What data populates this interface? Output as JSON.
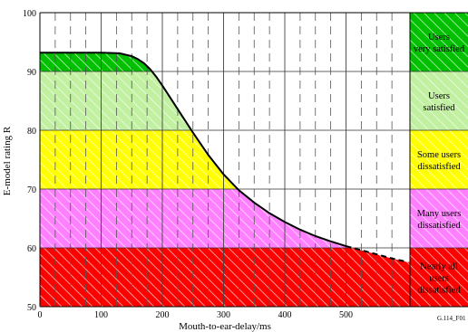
{
  "chart_data": {
    "type": "area",
    "xlabel": "Mouth-to-ear-delay/ms",
    "ylabel": "E-model rating R",
    "figure_id": "G.114_F01",
    "xlim": [
      0,
      600
    ],
    "ylim": [
      50,
      100
    ],
    "x_ticks": [
      0,
      100,
      200,
      300,
      400,
      500
    ],
    "y_ticks": [
      50,
      60,
      70,
      80,
      90,
      100
    ],
    "bands": [
      {
        "from": 50,
        "to": 60,
        "color": "#ff0000",
        "label_lines": [
          "Nearly all",
          "users",
          "dissatisfied"
        ]
      },
      {
        "from": 60,
        "to": 70,
        "color": "#ff80ff",
        "label_lines": [
          "Many users",
          "dissatisfied"
        ]
      },
      {
        "from": 70,
        "to": 80,
        "color": "#ffff00",
        "label_lines": [
          "Some users",
          "dissatisfied"
        ]
      },
      {
        "from": 80,
        "to": 90,
        "color": "#c0f0a0",
        "label_lines": [
          "Users",
          "satisfied"
        ]
      },
      {
        "from": 90,
        "to": 100,
        "color": "#00c000",
        "label_lines": [
          "Users",
          "very satisfied"
        ]
      }
    ],
    "series": [
      {
        "x": [
          0,
          50,
          100,
          130,
          150,
          160,
          170,
          180,
          190,
          200,
          225,
          250,
          275,
          300,
          325,
          350,
          375,
          400,
          425,
          450,
          475,
          500
        ],
        "y": [
          93.2,
          93.2,
          93.2,
          93.1,
          92.6,
          92.1,
          91.4,
          90.4,
          89.1,
          87.6,
          83.6,
          79.6,
          75.8,
          72.5,
          69.8,
          67.7,
          65.9,
          64.4,
          63.1,
          62.0,
          61.1,
          60.3
        ],
        "style": "solid"
      },
      {
        "x": [
          500,
          525,
          550,
          575,
          600
        ],
        "y": [
          60.3,
          59.6,
          58.9,
          58.2,
          57.6
        ],
        "style": "dashed"
      }
    ]
  }
}
